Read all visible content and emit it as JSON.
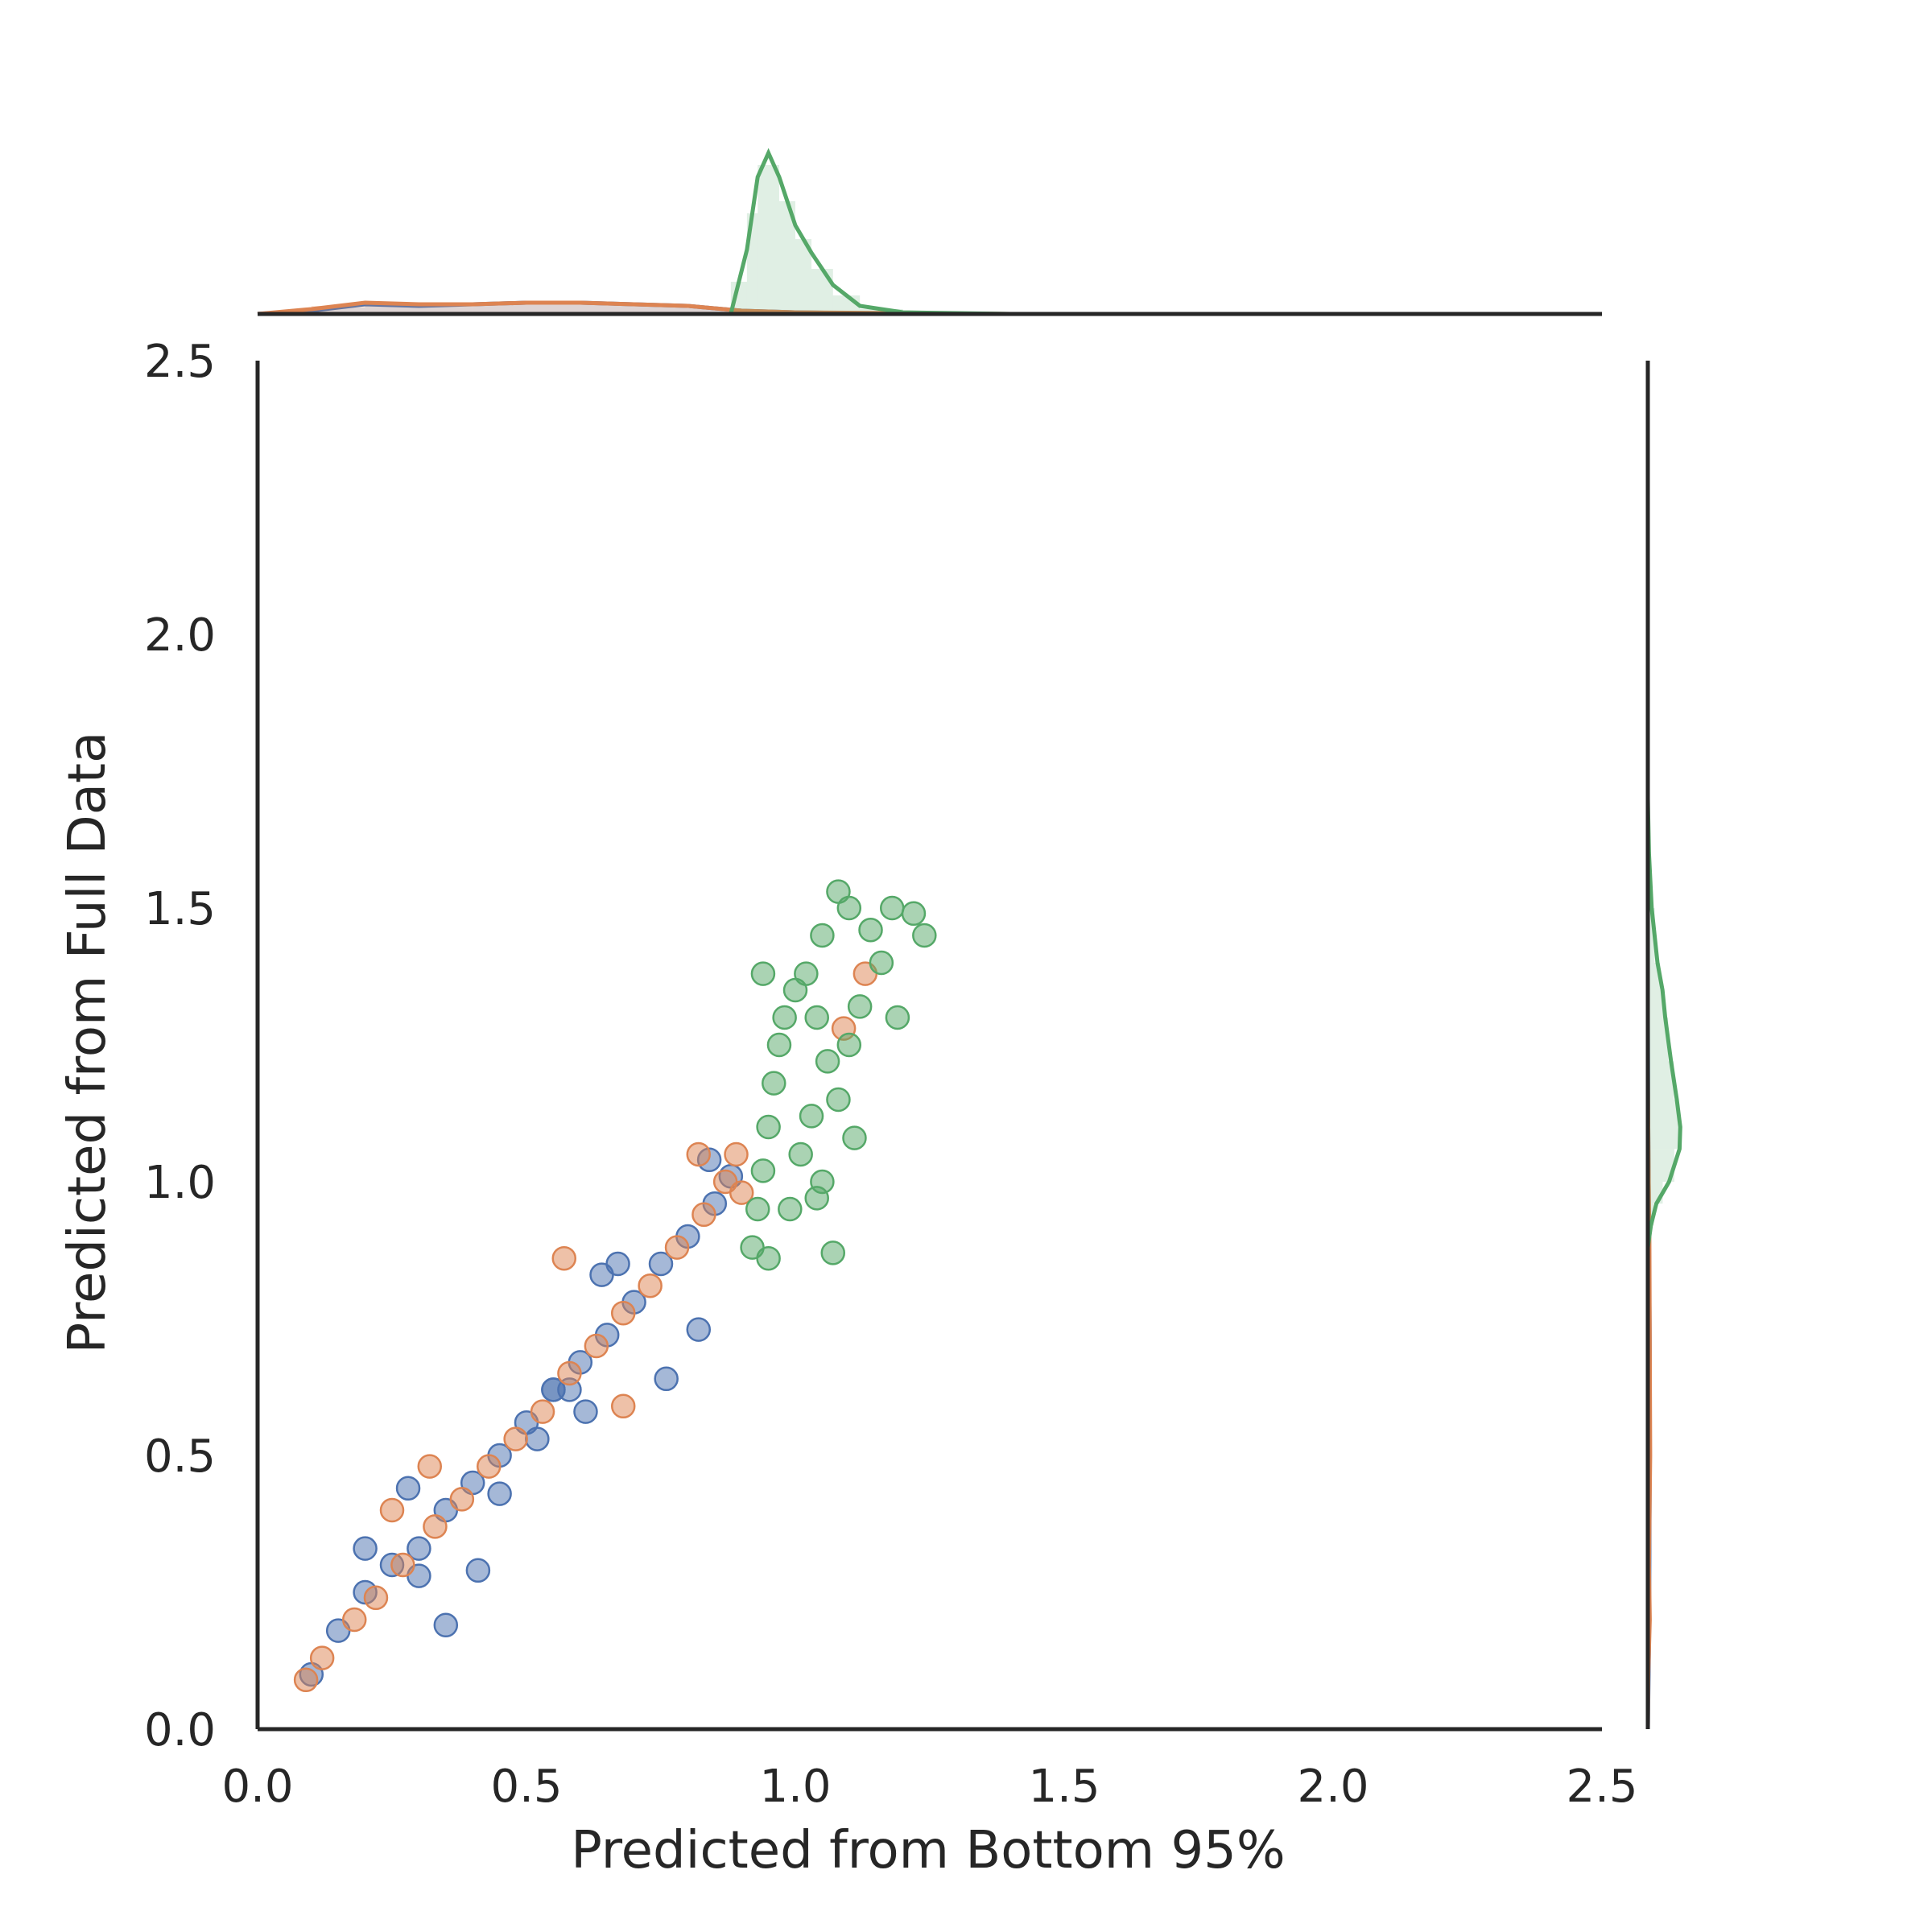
{
  "chart_data": {
    "type": "scatter",
    "subtype": "jointplot with marginal histograms and density curves",
    "xlabel": "Predicted from Bottom 95%",
    "ylabel": "Predicted from Full Data",
    "xlim": [
      0.0,
      2.5
    ],
    "ylim": [
      0.0,
      2.5
    ],
    "xticks": [
      "0.0",
      "0.5",
      "1.0",
      "1.5",
      "2.0",
      "2.5"
    ],
    "yticks": [
      "0.0",
      "0.5",
      "1.0",
      "1.5",
      "2.0",
      "2.5"
    ],
    "grid": false,
    "legend": "none",
    "series": [
      {
        "color": "#4C72B0",
        "points": [
          [
            0.1,
            0.1
          ],
          [
            0.15,
            0.18
          ],
          [
            0.2,
            0.25
          ],
          [
            0.25,
            0.3
          ],
          [
            0.3,
            0.33
          ],
          [
            0.35,
            0.4
          ],
          [
            0.4,
            0.45
          ],
          [
            0.45,
            0.5
          ],
          [
            0.5,
            0.56
          ],
          [
            0.55,
            0.62
          ],
          [
            0.6,
            0.67
          ],
          [
            0.65,
            0.72
          ],
          [
            0.7,
            0.78
          ],
          [
            0.75,
            0.85
          ],
          [
            0.8,
            0.9
          ],
          [
            0.85,
            0.96
          ],
          [
            0.2,
            0.33
          ],
          [
            0.28,
            0.44
          ],
          [
            0.3,
            0.28
          ],
          [
            0.41,
            0.29
          ],
          [
            0.45,
            0.43
          ],
          [
            0.52,
            0.53
          ],
          [
            0.55,
            0.62
          ],
          [
            0.61,
            0.58
          ],
          [
            0.64,
            0.83
          ],
          [
            0.67,
            0.85
          ],
          [
            0.76,
            0.64
          ],
          [
            0.82,
            0.73
          ],
          [
            0.84,
            1.04
          ],
          [
            0.88,
            1.01
          ],
          [
            0.35,
            0.19
          ],
          [
            0.58,
            0.62
          ]
        ],
        "kde_x": [
          [
            0.0,
            0.0
          ],
          [
            0.1,
            0.02
          ],
          [
            0.2,
            0.06
          ],
          [
            0.3,
            0.05
          ],
          [
            0.4,
            0.06
          ],
          [
            0.5,
            0.07
          ],
          [
            0.6,
            0.07
          ],
          [
            0.7,
            0.06
          ],
          [
            0.8,
            0.05
          ],
          [
            0.9,
            0.02
          ],
          [
            1.0,
            0.01
          ],
          [
            1.2,
            0.0
          ]
        ],
        "kde_y": [
          [
            0.0,
            0.0
          ],
          [
            0.15,
            0.03
          ],
          [
            0.3,
            0.04
          ],
          [
            0.5,
            0.05
          ],
          [
            0.7,
            0.05
          ],
          [
            0.9,
            0.03
          ],
          [
            1.0,
            0.02
          ],
          [
            1.1,
            0.01
          ],
          [
            1.3,
            0.0
          ]
        ]
      },
      {
        "color": "#DD8452",
        "points": [
          [
            0.09,
            0.09
          ],
          [
            0.12,
            0.13
          ],
          [
            0.18,
            0.2
          ],
          [
            0.22,
            0.24
          ],
          [
            0.27,
            0.3
          ],
          [
            0.33,
            0.37
          ],
          [
            0.38,
            0.42
          ],
          [
            0.43,
            0.48
          ],
          [
            0.48,
            0.53
          ],
          [
            0.53,
            0.58
          ],
          [
            0.58,
            0.65
          ],
          [
            0.63,
            0.7
          ],
          [
            0.68,
            0.76
          ],
          [
            0.73,
            0.81
          ],
          [
            0.78,
            0.88
          ],
          [
            0.83,
            0.94
          ],
          [
            0.87,
            1.0
          ],
          [
            0.89,
            1.05
          ],
          [
            0.57,
            0.86
          ],
          [
            0.82,
            1.05
          ],
          [
            0.25,
            0.4
          ],
          [
            0.32,
            0.48
          ],
          [
            0.68,
            0.59
          ],
          [
            0.9,
            0.98
          ],
          [
            1.09,
            1.28
          ],
          [
            1.13,
            1.38
          ]
        ],
        "kde_x": [
          [
            0.0,
            0.0
          ],
          [
            0.1,
            0.03
          ],
          [
            0.2,
            0.07
          ],
          [
            0.3,
            0.06
          ],
          [
            0.4,
            0.06
          ],
          [
            0.5,
            0.07
          ],
          [
            0.6,
            0.07
          ],
          [
            0.7,
            0.06
          ],
          [
            0.8,
            0.05
          ],
          [
            0.9,
            0.02
          ],
          [
            1.0,
            0.01
          ],
          [
            1.4,
            0.0
          ]
        ],
        "kde_y": [
          [
            0.0,
            0.0
          ],
          [
            0.1,
            0.01
          ],
          [
            0.2,
            0.05
          ],
          [
            0.3,
            0.03
          ],
          [
            0.5,
            0.06
          ],
          [
            0.7,
            0.05
          ],
          [
            0.9,
            0.04
          ],
          [
            1.0,
            0.02
          ],
          [
            1.2,
            0.0
          ]
        ]
      },
      {
        "color": "#55A868",
        "points": [
          [
            0.92,
            0.88
          ],
          [
            0.93,
            0.95
          ],
          [
            0.94,
            1.02
          ],
          [
            0.95,
            1.1
          ],
          [
            0.96,
            1.18
          ],
          [
            0.97,
            1.25
          ],
          [
            0.98,
            1.3
          ],
          [
            1.0,
            1.35
          ],
          [
            1.02,
            1.38
          ],
          [
            1.04,
            1.3
          ],
          [
            1.06,
            1.22
          ],
          [
            1.03,
            1.12
          ],
          [
            1.01,
            1.05
          ],
          [
            0.99,
            0.95
          ],
          [
            1.05,
            1.0
          ],
          [
            1.08,
            1.15
          ],
          [
            1.1,
            1.25
          ],
          [
            1.12,
            1.32
          ],
          [
            0.94,
            1.38
          ],
          [
            1.04,
            0.97
          ],
          [
            1.14,
            1.46
          ],
          [
            1.18,
            1.5
          ],
          [
            1.22,
            1.49
          ],
          [
            1.24,
            1.45
          ],
          [
            1.1,
            1.5
          ],
          [
            1.08,
            1.53
          ],
          [
            1.05,
            1.45
          ],
          [
            1.16,
            1.4
          ],
          [
            1.19,
            1.3
          ],
          [
            1.07,
            0.87
          ],
          [
            0.95,
            0.86
          ],
          [
            1.11,
            1.08
          ]
        ],
        "kde_x": [
          [
            0.88,
            0.0
          ],
          [
            0.91,
            0.4
          ],
          [
            0.93,
            0.85
          ],
          [
            0.95,
            1.0
          ],
          [
            0.97,
            0.85
          ],
          [
            1.0,
            0.55
          ],
          [
            1.03,
            0.38
          ],
          [
            1.07,
            0.18
          ],
          [
            1.12,
            0.05
          ],
          [
            1.2,
            0.01
          ],
          [
            1.4,
            0.0
          ]
        ],
        "kde_y": [
          [
            0.88,
            0.0
          ],
          [
            0.92,
            0.08
          ],
          [
            0.96,
            0.22
          ],
          [
            1.0,
            0.55
          ],
          [
            1.06,
            0.82
          ],
          [
            1.1,
            0.84
          ],
          [
            1.15,
            0.75
          ],
          [
            1.22,
            0.6
          ],
          [
            1.3,
            0.45
          ],
          [
            1.35,
            0.38
          ],
          [
            1.4,
            0.25
          ],
          [
            1.5,
            0.1
          ],
          [
            1.6,
            0.03
          ],
          [
            1.7,
            0.0
          ]
        ]
      }
    ]
  }
}
